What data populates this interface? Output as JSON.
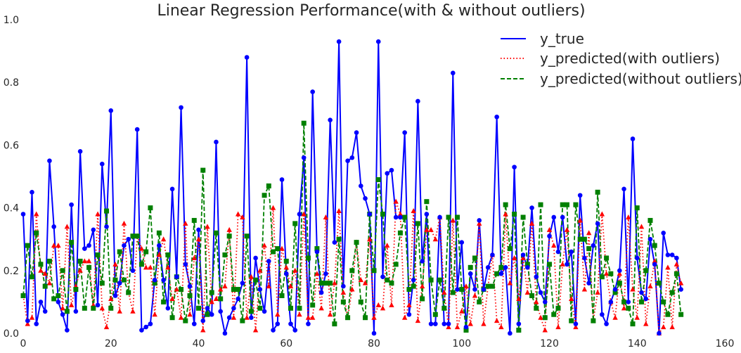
{
  "chart_data": {
    "type": "line",
    "title": "Linear Regression Performance(with & without outliers)",
    "xlabel": "",
    "ylabel": "",
    "xlim": [
      0,
      160
    ],
    "ylim": [
      0,
      1.0
    ],
    "x_ticks": [
      0,
      20,
      40,
      60,
      80,
      100,
      120,
      140,
      160
    ],
    "y_ticks": [
      0.0,
      0.2,
      0.4,
      0.6,
      0.8,
      1.0
    ],
    "x_tick_labels": [
      "0",
      "20",
      "40",
      "60",
      "80",
      "100",
      "120",
      "140",
      "160"
    ],
    "y_tick_labels": [
      "0.0",
      "0.2",
      "0.4",
      "0.6",
      "0.8",
      "1.0"
    ],
    "grid": false,
    "legend_position": "top-right",
    "series": [
      {
        "name": "y_true",
        "color": "#0000ff",
        "style": "solid",
        "marker": "circle",
        "values": [
          0.38,
          0.04,
          0.45,
          0.03,
          0.1,
          0.07,
          0.55,
          0.34,
          0.1,
          0.06,
          0.01,
          0.41,
          0.07,
          0.58,
          0.27,
          0.28,
          0.33,
          0.09,
          0.54,
          0.34,
          0.71,
          0.12,
          0.16,
          0.28,
          0.3,
          0.2,
          0.65,
          0.01,
          0.02,
          0.03,
          0.17,
          0.28,
          0.17,
          0.08,
          0.46,
          0.18,
          0.72,
          0.22,
          0.15,
          0.03,
          0.33,
          0.04,
          0.08,
          0.06,
          0.61,
          0.07,
          0.0,
          0.05,
          0.08,
          0.11,
          0.16,
          0.88,
          0.05,
          0.24,
          0.14,
          0.07,
          0.23,
          0.01,
          0.03,
          0.49,
          0.19,
          0.03,
          0.01,
          0.38,
          0.56,
          0.03,
          0.77,
          0.26,
          0.13,
          0.19,
          0.68,
          0.29,
          0.93,
          0.15,
          0.55,
          0.56,
          0.64,
          0.47,
          0.43,
          0.38,
          0.0,
          0.93,
          0.18,
          0.51,
          0.52,
          0.37,
          0.37,
          0.64,
          0.06,
          0.17,
          0.74,
          0.23,
          0.38,
          0.03,
          0.03,
          0.37,
          0.03,
          0.03,
          0.83,
          0.14,
          0.29,
          0.02,
          0.19,
          0.14,
          0.36,
          0.14,
          0.21,
          0.25,
          0.69,
          0.19,
          0.21,
          0.0,
          0.53,
          0.03,
          0.25,
          0.21,
          0.4,
          0.18,
          0.13,
          0.1,
          0.31,
          0.37,
          0.26,
          0.37,
          0.22,
          0.26,
          0.03,
          0.44,
          0.24,
          0.16,
          0.28,
          0.35,
          0.06,
          0.03,
          0.1,
          0.14,
          0.2,
          0.46,
          0.1,
          0.62,
          0.24,
          0.13,
          0.11,
          0.3,
          0.22,
          0.0,
          0.32,
          0.25,
          0.25,
          0.24,
          0.14
        ]
      },
      {
        "name": "y_predicted(with outliers)",
        "color": "#ff0000",
        "style": "dotted",
        "marker": "triangle",
        "values": [
          0.12,
          0.03,
          0.05,
          0.38,
          0.2,
          0.19,
          0.16,
          0.28,
          0.28,
          0.08,
          0.34,
          0.09,
          0.15,
          0.2,
          0.23,
          0.23,
          0.09,
          0.38,
          0.08,
          0.02,
          0.11,
          0.22,
          0.07,
          0.35,
          0.13,
          0.07,
          0.31,
          0.27,
          0.21,
          0.21,
          0.06,
          0.25,
          0.3,
          0.21,
          0.11,
          0.14,
          0.05,
          0.35,
          0.06,
          0.24,
          0.3,
          0.01,
          0.34,
          0.1,
          0.11,
          0.14,
          0.15,
          0.33,
          0.05,
          0.38,
          0.37,
          0.05,
          0.18,
          0.01,
          0.2,
          0.28,
          0.15,
          0.4,
          0.06,
          0.27,
          0.21,
          0.15,
          0.2,
          0.06,
          0.38,
          0.05,
          0.05,
          0.19,
          0.08,
          0.37,
          0.06,
          0.16,
          0.39,
          0.13,
          0.05,
          0.14,
          0.29,
          0.17,
          0.16,
          0.3,
          0.05,
          0.09,
          0.08,
          0.28,
          0.09,
          0.42,
          0.38,
          0.05,
          0.09,
          0.39,
          0.04,
          0.15,
          0.33,
          0.33,
          0.3,
          0.37,
          0.13,
          0.02,
          0.36,
          0.02,
          0.07,
          0.15,
          0.03,
          0.12,
          0.35,
          0.03,
          0.15,
          0.25,
          0.04,
          0.02,
          0.38,
          0.16,
          0.24,
          0.11,
          0.24,
          0.13,
          0.35,
          0.1,
          0.05,
          0.01,
          0.33,
          0.28,
          0.02,
          0.22,
          0.33,
          0.11,
          0.02,
          0.36,
          0.14,
          0.32,
          0.04,
          0.13,
          0.38,
          0.19,
          0.1,
          0.05,
          0.19,
          0.08,
          0.37,
          0.14,
          0.05,
          0.34,
          0.03,
          0.15,
          0.23,
          0.0,
          0.02,
          0.21,
          0.02,
          0.22,
          0.16
        ]
      },
      {
        "name": "y_predicted(without outliers)",
        "color": "#008000",
        "style": "dashed",
        "marker": "square",
        "values": [
          0.12,
          0.28,
          0.18,
          0.32,
          0.22,
          0.15,
          0.23,
          0.11,
          0.12,
          0.2,
          0.07,
          0.29,
          0.14,
          0.23,
          0.08,
          0.21,
          0.08,
          0.25,
          0.16,
          0.39,
          0.08,
          0.17,
          0.26,
          0.17,
          0.13,
          0.31,
          0.31,
          0.22,
          0.26,
          0.4,
          0.16,
          0.32,
          0.1,
          0.25,
          0.05,
          0.18,
          0.14,
          0.04,
          0.12,
          0.36,
          0.08,
          0.52,
          0.06,
          0.13,
          0.32,
          0.11,
          0.25,
          0.31,
          0.14,
          0.14,
          0.04,
          0.31,
          0.07,
          0.17,
          0.08,
          0.44,
          0.47,
          0.26,
          0.27,
          0.12,
          0.23,
          0.08,
          0.35,
          0.08,
          0.67,
          0.24,
          0.09,
          0.27,
          0.16,
          0.16,
          0.16,
          0.03,
          0.3,
          0.1,
          0.05,
          0.2,
          0.29,
          0.1,
          0.05,
          0.38,
          0.2,
          0.49,
          0.38,
          0.17,
          0.16,
          0.22,
          0.32,
          0.37,
          0.14,
          0.15,
          0.35,
          0.11,
          0.42,
          0.17,
          0.06,
          0.17,
          0.08,
          0.37,
          0.13,
          0.37,
          0.14,
          0.01,
          0.21,
          0.24,
          0.1,
          0.14,
          0.15,
          0.15,
          0.19,
          0.21,
          0.41,
          0.27,
          0.38,
          0.01,
          0.37,
          0.22,
          0.12,
          0.08,
          0.41,
          0.05,
          0.22,
          0.06,
          0.08,
          0.41,
          0.41,
          0.04,
          0.41,
          0.3,
          0.3,
          0.27,
          0.04,
          0.45,
          0.18,
          0.24,
          0.19,
          0.13,
          0.16,
          0.1,
          0.08,
          0.03,
          0.4,
          0.1,
          0.2,
          0.36,
          0.28,
          0.16,
          0.1,
          0.06,
          0.13,
          0.19,
          0.06
        ]
      }
    ]
  }
}
